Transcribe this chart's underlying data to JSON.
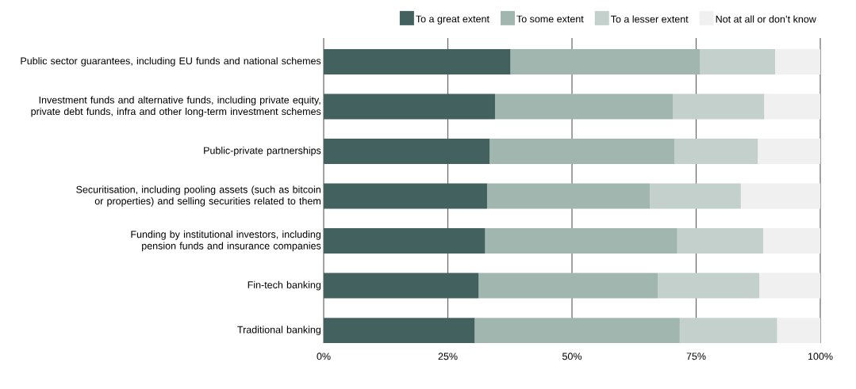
{
  "chart_data": {
    "type": "bar",
    "orientation": "horizontal",
    "stacked": true,
    "categories": [
      "Public sector guarantees, including EU funds and national schemes",
      "Investment funds and alternative funds, including private equity, private debt funds, infra and other long-term investment schemes",
      "Public-private partnerships",
      "Securitisation, including pooling assets (such as bitcoin or properties) and selling securities related to them",
      "Funding by institutional investors, including pension funds and insurance companies",
      "Fin-tech banking",
      "Traditional banking"
    ],
    "series": [
      {
        "name": "To a great extent",
        "color": "#42615f",
        "values": [
          37.6,
          34.5,
          33.4,
          32.9,
          32.5,
          31.2,
          30.4
        ]
      },
      {
        "name": "To some extent",
        "color": "#a1b6af",
        "values": [
          38.2,
          35.8,
          37.2,
          32.8,
          38.7,
          36.1,
          41.3
        ]
      },
      {
        "name": "To a lesser extent",
        "color": "#c4d0cb",
        "values": [
          15.1,
          18.4,
          16.8,
          18.3,
          17.3,
          20.4,
          19.6
        ]
      },
      {
        "name": "Not at all or don’t know",
        "color": "#f0f0f0",
        "values": [
          9.1,
          11.3,
          12.6,
          16.0,
          11.5,
          12.3,
          8.7
        ]
      }
    ],
    "xlim": [
      0,
      100
    ],
    "xticks": [
      {
        "value": 0,
        "label": "0%"
      },
      {
        "value": 25,
        "label": "25%"
      },
      {
        "value": 50,
        "label": "50%"
      },
      {
        "value": 75,
        "label": "75%"
      },
      {
        "value": 100,
        "label": "100%"
      }
    ],
    "grid": "x",
    "legend": "top right"
  }
}
